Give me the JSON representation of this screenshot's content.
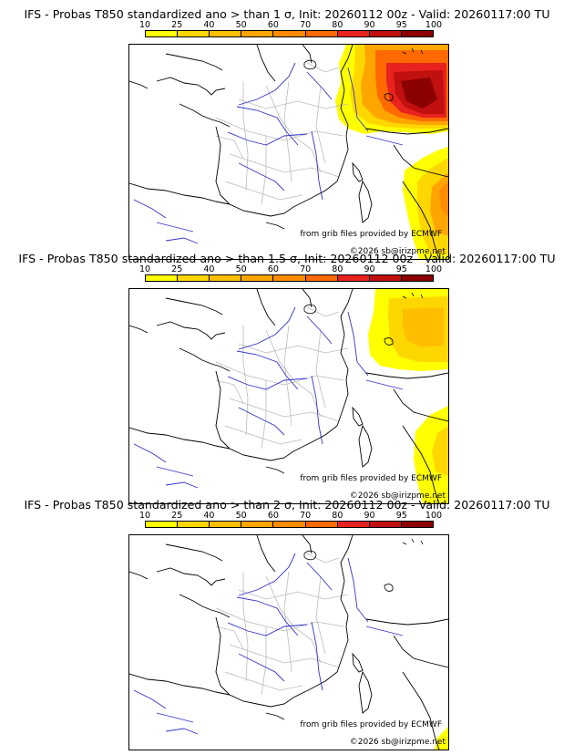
{
  "colorbar": {
    "ticks": [
      "10",
      "25",
      "40",
      "50",
      "60",
      "70",
      "80",
      "90",
      "95",
      "100"
    ],
    "colors": [
      "#ffff00",
      "#ffd700",
      "#ffbf00",
      "#ffa500",
      "#ff8c00",
      "#ff6a00",
      "#e8221e",
      "#c01010",
      "#8b0000"
    ]
  },
  "panels": [
    {
      "title": "IFS - Probas T850  standardized ano > than 1 σ, Init: 20260112 00z - Valid: 20260117:00 TU",
      "credit_source": "from grib files provided by ECMWF",
      "credit_copyright": "©2026 sb@irizpme.net"
    },
    {
      "title": "IFS - Probas T850  standardized ano > than 1.5 σ, Init: 20260112 00z - Valid: 20260117:00 TU",
      "credit_source": "from grib files provided by ECMWF",
      "credit_copyright": "©2026 sb@irizpme.net"
    },
    {
      "title": "IFS - Probas T850  standardized ano > than 2 σ, Init: 20260112 00z - Valid: 20260117:00 TU",
      "credit_source": "from grib files provided by ECMWF",
      "credit_copyright": "©2026 sb@irizpme.net"
    }
  ]
}
